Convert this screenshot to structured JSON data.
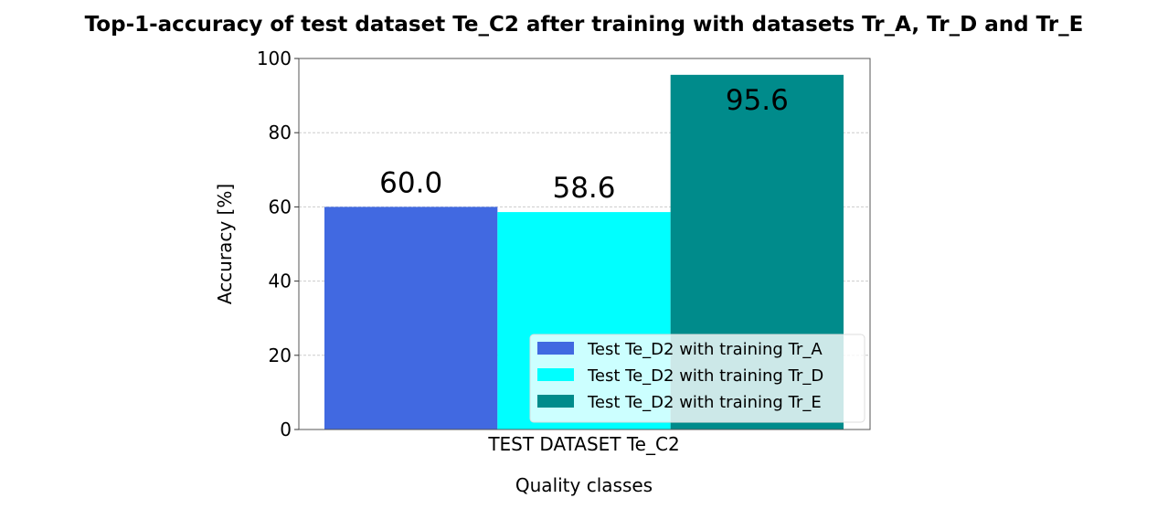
{
  "chart_data": {
    "type": "bar",
    "title": "Top-1-accuracy of test dataset Te_C2 after training with datasets Tr_A, Tr_D and Tr_E",
    "xlabel": "Quality classes",
    "ylabel": "Accuracy [%]",
    "categories": [
      "TEST DATASET Te_C2"
    ],
    "ylim": [
      0,
      100
    ],
    "yticks": [
      0,
      20,
      40,
      60,
      80,
      100
    ],
    "grid": true,
    "legend_placement": "lower-right",
    "series": [
      {
        "name": "Test Te_D2 with training Tr_A",
        "values": [
          60.0
        ],
        "label": "60.0",
        "color": "#4169e1"
      },
      {
        "name": "Test Te_D2 with training Tr_D",
        "values": [
          58.6
        ],
        "label": "58.6",
        "color": "#00ffff"
      },
      {
        "name": "Test Te_D2 with training Tr_E",
        "values": [
          95.6
        ],
        "label": "95.6",
        "color": "#008b8b"
      }
    ]
  }
}
